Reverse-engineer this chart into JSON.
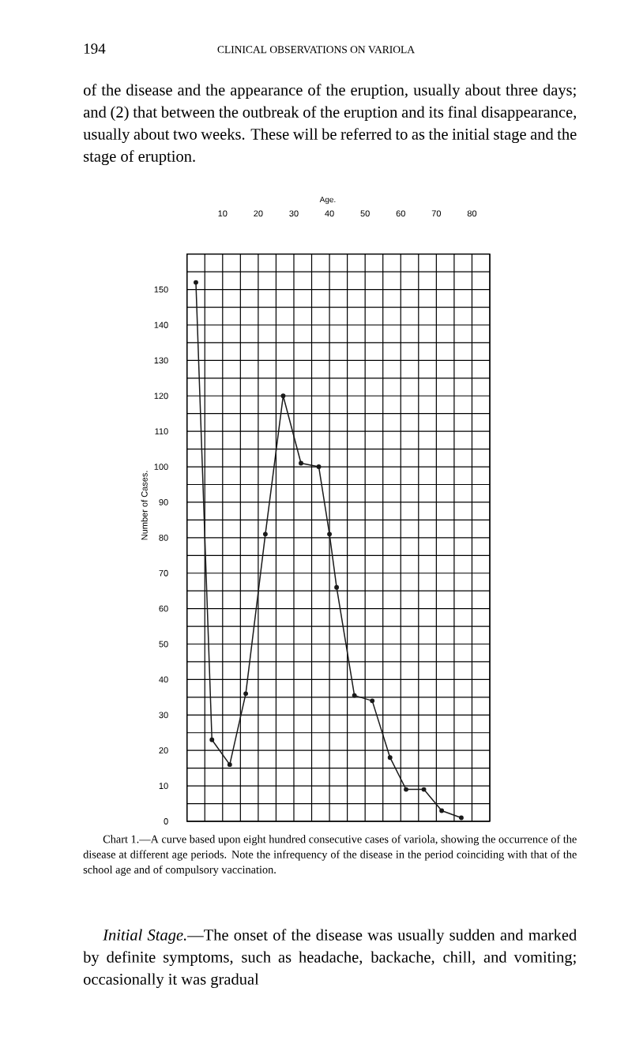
{
  "chart_data": {
    "type": "line",
    "xlabel": "Age.",
    "ylabel": "Number of Cases.",
    "series": [
      {
        "color": "#1a1a1a",
        "x": [
          2.5,
          7,
          12,
          16.5,
          22,
          27,
          32,
          37,
          40,
          42,
          47,
          52,
          57,
          61.5,
          66.5,
          71.5,
          77
        ],
        "values": [
          152,
          23,
          16,
          36,
          81,
          120,
          101,
          100,
          81,
          66,
          35.5,
          34,
          18,
          9,
          9,
          3,
          1
        ]
      }
    ],
    "xlim": [
      0,
      85
    ],
    "ylim": [
      0,
      160
    ],
    "xticks": [
      10,
      20,
      30,
      40,
      50,
      60,
      70,
      80
    ],
    "yticks": [
      0,
      10,
      20,
      30,
      40,
      50,
      60,
      70,
      80,
      90,
      100,
      110,
      120,
      130,
      140,
      150
    ],
    "grid": true,
    "marker": "circle",
    "line_style": "solid",
    "annotations": [
      "194",
      "CLINICAL OBSERVATIONS ON VARIOLA",
      "of the disease and the appearance of the eruption, usually about three days; and (2) that between the outbreak of the eruption and its final disappearance, usually about two weeks. These will be referred to as the initial stage and the stage of eruption.",
      "Chart 1.—A curve based upon eight hundred consecutive cases of variola, showing the occurrence of the disease at different age periods. Note the infrequency of the disease in the period coinciding with that of the school age and of compulsory vaccination.",
      "*Initial Stage.*—The onset of the disease was usually sudden and marked by definite symptoms, such as headache, backache, chill, and vomiting; occasionally it was gradual"
    ]
  }
}
